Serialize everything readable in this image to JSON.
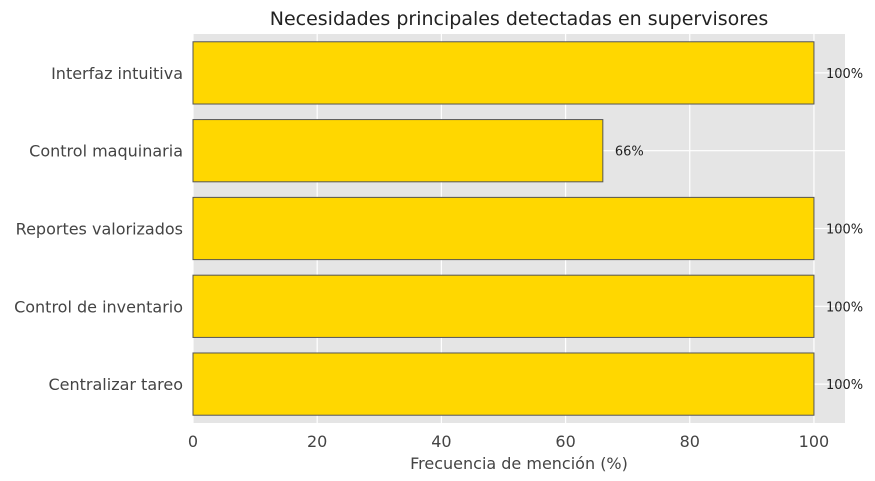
{
  "chart_data": {
    "type": "bar",
    "orientation": "horizontal",
    "title": "Necesidades principales detectadas en supervisores",
    "xlabel": "Frecuencia de mención (%)",
    "ylabel": "",
    "categories": [
      "Interfaz intuitiva",
      "Control maquinaria",
      "Reportes valorizados",
      "Control de inventario",
      "Centralizar tareo"
    ],
    "values": [
      100,
      66,
      100,
      100,
      100
    ],
    "data_labels": [
      "100%",
      "66%",
      "100%",
      "100%",
      "100%"
    ],
    "xlim": [
      0,
      105
    ],
    "xticks": [
      0,
      20,
      40,
      60,
      80,
      100
    ],
    "grid": true,
    "bar_color": "#FFD700",
    "edge_color": "#555555",
    "background_color": "#E5E5E5"
  }
}
